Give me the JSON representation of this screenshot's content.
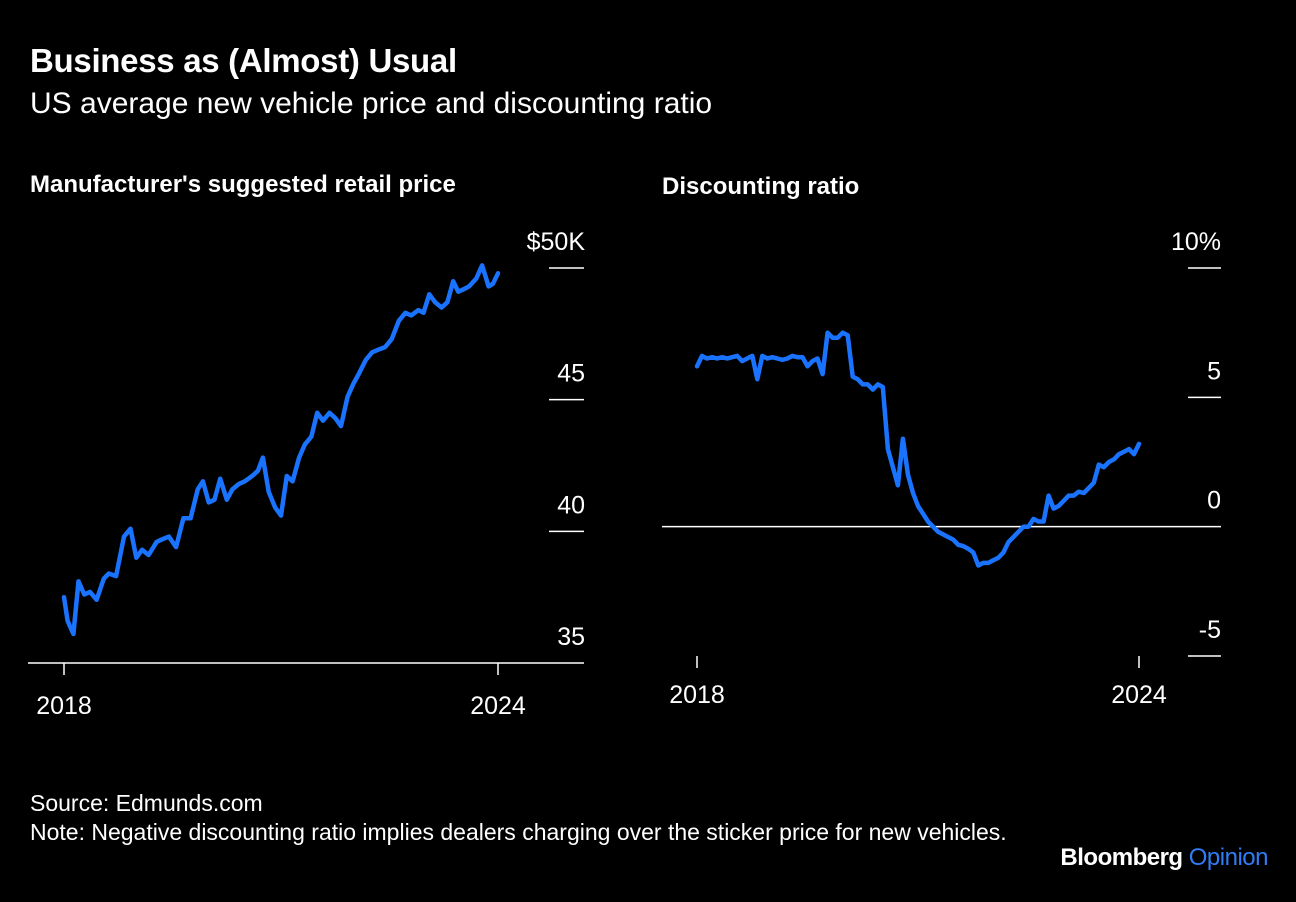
{
  "header": {
    "title": "Business as (Almost) Usual",
    "subtitle": "US average new vehicle price and discounting ratio"
  },
  "footer": {
    "source": "Source: Edmunds.com",
    "note": "Note: Negative discounting ratio implies dealers charging over the sticker price for new vehicles."
  },
  "brand": {
    "name": "Bloomberg",
    "accent": "Opinion"
  },
  "colors": {
    "line": "#1a73ff",
    "axis": "#ffffff",
    "background": "#000000",
    "brand_accent": "#2f7df6"
  },
  "chart_data": [
    {
      "type": "line",
      "title": "Manufacturer's suggested retail price",
      "xlabel": "",
      "ylabel": "",
      "y_axis_side": "right",
      "x_ticks": [
        2018,
        2024
      ],
      "x_tick_labels": [
        "2018",
        "2024"
      ],
      "xlim": [
        2018,
        2024.05
      ],
      "y_ticks": [
        35,
        40,
        45,
        50
      ],
      "y_tick_labels": [
        "35",
        "40",
        "45",
        "$50K"
      ],
      "ylim": [
        35,
        50
      ],
      "grid": false,
      "series": [
        {
          "name": "",
          "x": [
            2018.0,
            2018.05,
            2018.13,
            2018.2,
            2018.28,
            2018.36,
            2018.45,
            2018.55,
            2018.62,
            2018.72,
            2018.83,
            2018.92,
            2019.0,
            2019.08,
            2019.17,
            2019.28,
            2019.36,
            2019.45,
            2019.55,
            2019.65,
            2019.75,
            2019.85,
            2019.92,
            2020.0,
            2020.08,
            2020.16,
            2020.25,
            2020.33,
            2020.42,
            2020.5,
            2020.6,
            2020.68,
            2020.75,
            2020.83,
            2020.92,
            2021.0,
            2021.08,
            2021.16,
            2021.25,
            2021.33,
            2021.42,
            2021.5,
            2021.58,
            2021.67,
            2021.75,
            2021.83,
            2021.92,
            2022.0,
            2022.08,
            2022.17,
            2022.26,
            2022.35,
            2022.44,
            2022.53,
            2022.63,
            2022.72,
            2022.8,
            2022.9,
            2022.97,
            2023.05,
            2023.13,
            2023.22,
            2023.3,
            2023.38,
            2023.45,
            2023.53,
            2023.6,
            2023.7,
            2023.78,
            2023.87,
            2023.93,
            2024.0
          ],
          "values": [
            37.5,
            36.6,
            36.1,
            38.1,
            37.6,
            37.7,
            37.4,
            38.2,
            38.4,
            38.3,
            39.8,
            40.1,
            39.0,
            39.3,
            39.1,
            39.6,
            39.7,
            39.8,
            39.4,
            40.5,
            40.5,
            41.6,
            41.9,
            41.1,
            41.2,
            42.0,
            41.2,
            41.6,
            41.8,
            41.9,
            42.1,
            42.3,
            42.8,
            41.5,
            40.9,
            40.6,
            42.1,
            41.9,
            42.8,
            43.3,
            43.6,
            44.5,
            44.2,
            44.5,
            44.3,
            44.0,
            45.1,
            45.6,
            46.0,
            46.5,
            46.8,
            46.9,
            47.0,
            47.3,
            48.0,
            48.3,
            48.2,
            48.4,
            48.3,
            49.0,
            48.7,
            48.5,
            48.7,
            49.5,
            49.1,
            49.2,
            49.3,
            49.6,
            50.1,
            49.3,
            49.4,
            49.8
          ]
        }
      ]
    },
    {
      "type": "line",
      "title": "Discounting ratio",
      "xlabel": "",
      "ylabel": "",
      "y_axis_side": "right",
      "x_ticks": [
        2018,
        2024
      ],
      "x_tick_labels": [
        "2018",
        "2024"
      ],
      "xlim": [
        2018,
        2024.05
      ],
      "y_ticks": [
        -5,
        0,
        5,
        10
      ],
      "y_tick_labels": [
        "-5",
        "0",
        "5",
        "10%"
      ],
      "ylim": [
        -5,
        10
      ],
      "reference_line": 0,
      "grid": false,
      "series": [
        {
          "name": "",
          "values": [
            6.2,
            6.6,
            6.5,
            6.55,
            6.5,
            6.55,
            6.5,
            6.55,
            6.6,
            6.4,
            6.5,
            6.6,
            5.7,
            6.6,
            6.5,
            6.55,
            6.5,
            6.45,
            6.5,
            6.6,
            6.55,
            6.55,
            6.2,
            6.4,
            6.5,
            5.9,
            7.5,
            7.3,
            7.3,
            7.5,
            7.4,
            5.8,
            5.7,
            5.5,
            5.5,
            5.3,
            5.5,
            5.4,
            3.0,
            2.3,
            1.6,
            3.4,
            2.0,
            1.3,
            0.8,
            0.5,
            0.2,
            0.0,
            -0.2,
            -0.3,
            -0.4,
            -0.5,
            -0.7,
            -0.75,
            -0.85,
            -1.0,
            -1.5,
            -1.4,
            -1.4,
            -1.3,
            -1.2,
            -1.0,
            -0.6,
            -0.4,
            -0.2,
            0.0,
            0.0,
            0.3,
            0.2,
            0.2,
            1.2,
            0.7,
            0.8,
            1.0,
            1.2,
            1.2,
            1.35,
            1.3,
            1.5,
            1.7,
            2.4,
            2.3,
            2.5,
            2.6,
            2.8,
            2.9,
            3.0,
            2.8,
            3.2
          ],
          "x_start": 2018.0,
          "x_end": 2024.0
        }
      ]
    }
  ]
}
